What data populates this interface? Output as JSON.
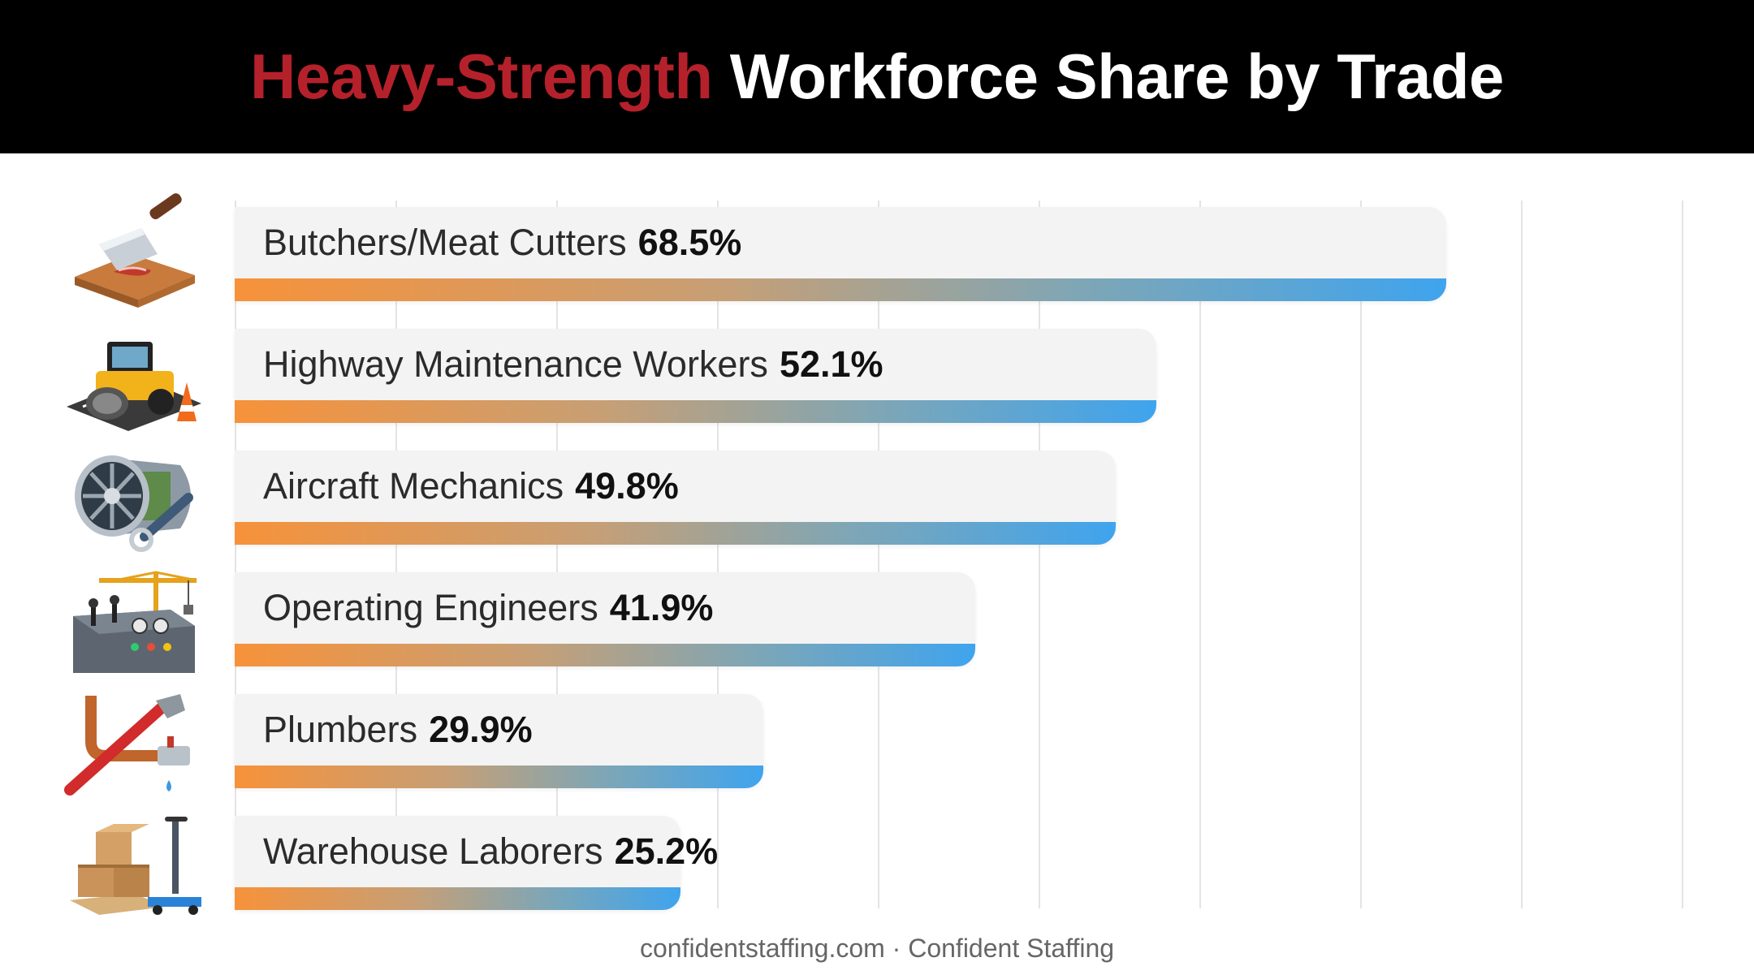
{
  "title": {
    "highlight": "Heavy-Strength",
    "rest": "Workforce Share by Trade"
  },
  "footer": "confidentstaffing.com · Confident Staffing",
  "colors": {
    "title_accent": "#b5212b",
    "bar_gradient_start": "#f7923a",
    "bar_gradient_end": "#3fa4ee",
    "header_background": "#000000"
  },
  "chart_data": {
    "type": "bar",
    "orientation": "horizontal",
    "unit": "%",
    "xlim": [
      0,
      90
    ],
    "grid": true,
    "categories": [
      "Butchers/Meat Cutters",
      "Highway Maintenance Workers",
      "Aircraft Mechanics",
      "Operating Engineers",
      "Plumbers",
      "Warehouse Laborers"
    ],
    "values": [
      68.5,
      52.1,
      49.8,
      41.9,
      29.9,
      25.2
    ],
    "value_labels": [
      "68.5%",
      "52.1%",
      "49.8%",
      "41.9%",
      "29.9%",
      "25.2%"
    ],
    "icons": [
      "cleaver-cutting-board-icon",
      "road-roller-icon",
      "jet-engine-wrench-icon",
      "crane-control-panel-icon",
      "pipe-wrench-icon",
      "boxes-pallet-jack-icon"
    ]
  }
}
